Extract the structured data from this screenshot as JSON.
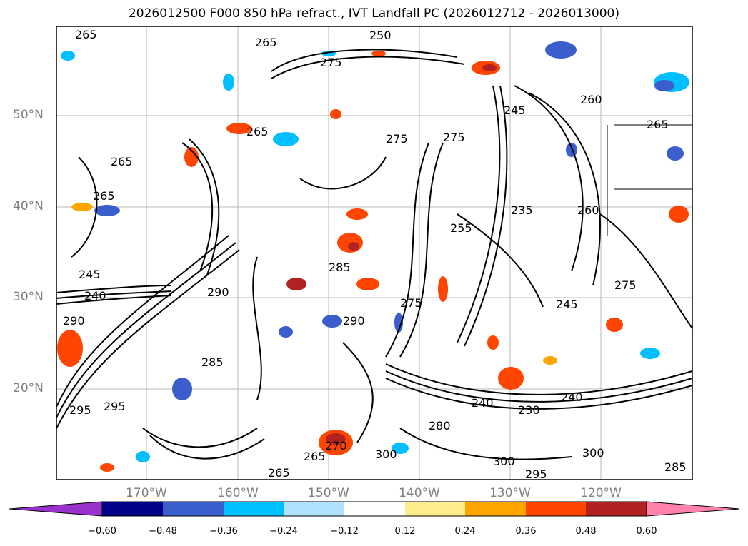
{
  "title": "2026012500 F000 850 hPa refract., IVT Landfall PC (2026012712 - 2026013000)",
  "map": {
    "lat_labels": [
      "50°N",
      "40°N",
      "30°N",
      "20°N"
    ],
    "lon_labels": [
      "170°W",
      "160°W",
      "150°W",
      "140°W",
      "130°W",
      "120°W"
    ],
    "contour_labels": [
      "265",
      "250",
      "275",
      "265",
      "265",
      "265",
      "275",
      "275",
      "265",
      "245",
      "260",
      "265",
      "235",
      "260",
      "255",
      "290",
      "240",
      "245",
      "275",
      "285",
      "290",
      "285",
      "240",
      "265",
      "300",
      "280",
      "240",
      "230",
      "245",
      "300",
      "295",
      "300",
      "285",
      "295",
      "295",
      "265",
      "270",
      "290",
      "275"
    ],
    "contour_line_color": "#000000"
  },
  "colorbar": {
    "ticks": [
      "−0.60",
      "−0.48",
      "−0.36",
      "−0.24",
      "−0.12",
      "0.12",
      "0.24",
      "0.36",
      "0.48",
      "0.60"
    ],
    "colors": [
      "#9932cc",
      "#00008b",
      "#3a5fcd",
      "#00bfff",
      "#b0e2ff",
      "#ffffff",
      "#ffec8b",
      "#ffa500",
      "#ff4500",
      "#b22222",
      "#ff82ab"
    ]
  }
}
